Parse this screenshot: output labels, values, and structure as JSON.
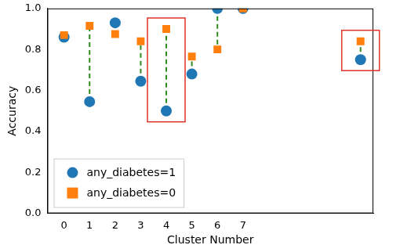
{
  "chart_data": {
    "type": "scatter",
    "x_label": "Cluster Number",
    "y_label": "Accuracy",
    "x": [
      0,
      1,
      2,
      3,
      4,
      5,
      6,
      7,
      11.6
    ],
    "series": [
      {
        "name": "any_diabetes=1",
        "color": "#1f77b4",
        "marker": "circle",
        "values": [
          0.86,
          0.545,
          0.93,
          0.645,
          0.5,
          0.68,
          1.0,
          1.0,
          0.75
        ]
      },
      {
        "name": "any_diabetes=0",
        "color": "#ff7f0e",
        "marker": "square",
        "values": [
          0.87,
          0.915,
          0.875,
          0.84,
          0.9,
          0.765,
          0.8,
          1.0,
          0.84
        ]
      }
    ],
    "xlim": [
      -0.65,
      12.1
    ],
    "xticks": [
      0,
      1,
      2,
      3,
      4,
      5,
      6,
      7
    ],
    "ylim": [
      0,
      1
    ],
    "yticks": [
      {
        "value": 0,
        "label": "0.0"
      },
      {
        "value": 0.2,
        "label": "0.2"
      },
      {
        "value": 0.4,
        "label": "0.4"
      },
      {
        "value": 0.6,
        "label": "0.6"
      },
      {
        "value": 0.8,
        "label": "0.8"
      },
      {
        "value": 1,
        "label": "1.0"
      }
    ],
    "grid": false,
    "legend": "lower left",
    "line_style": "dashed",
    "highlight_x": [
      4,
      11.6
    ]
  }
}
